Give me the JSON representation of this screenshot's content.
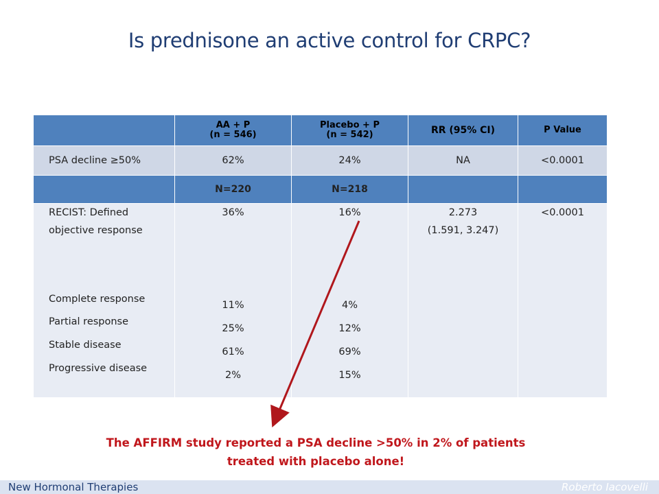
{
  "title": "Is prednisone an active control for CRPC?",
  "table": {
    "headers": [
      "",
      "AA + P\n(n = 546)",
      "Placebo + P\n(n = 542)",
      "RR (95% CI)",
      "P Value"
    ],
    "psa_row": [
      "PSA decline ≥50%",
      "62%",
      "24%",
      "NA",
      "<0.0001"
    ],
    "n_row": [
      "",
      "N=220",
      "N=218",
      "",
      ""
    ],
    "recist": {
      "label_line1": "RECIST: Defined",
      "label_line2": "objective response",
      "aa": "36%",
      "placebo": "16%",
      "rr_line1": "2.273",
      "rr_line2": "(1.591, 3.247)",
      "p": "<0.0001",
      "sub_labels": [
        "Complete response",
        "Partial response",
        "Stable disease",
        "Progressive disease"
      ],
      "sub_aa": [
        "11%",
        "25%",
        "61%",
        "2%"
      ],
      "sub_placebo": [
        "4%",
        "12%",
        "69%",
        "15%"
      ]
    }
  },
  "footnote_line1": "The AFFIRM study reported a PSA decline >50% in 2% of patients",
  "footnote_line2": "treated with placebo alone!",
  "footer": {
    "left": "New Hormonal Therapies",
    "right": "Roberto Iacovelli"
  },
  "colors": {
    "title": "#1f3d73",
    "header_fill": "#4f81bd",
    "accent_red": "#c0171c"
  }
}
